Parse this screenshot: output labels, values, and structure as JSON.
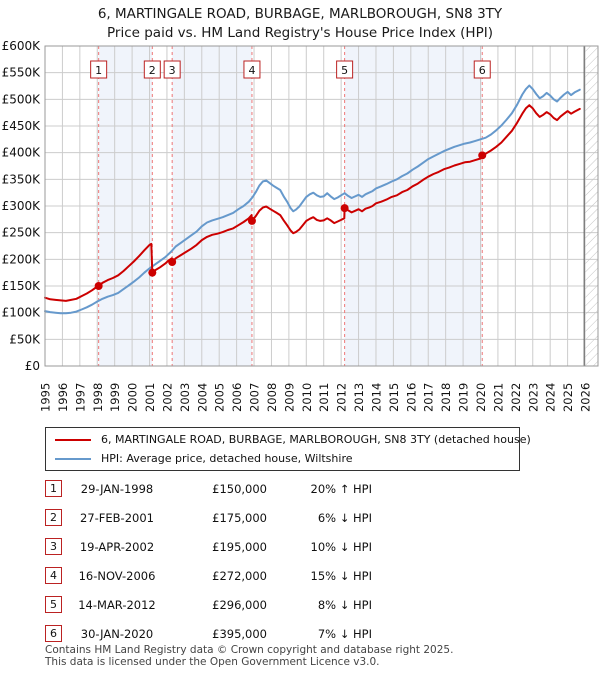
{
  "page": {
    "title": "6, MARTINGALE ROAD, BURBAGE, MARLBOROUGH, SN8 3TY",
    "subtitle": "Price paid vs. HM Land Registry's House Price Index (HPI)"
  },
  "legend": {
    "items": [
      {
        "name": "price-paid",
        "label": "6, MARTINGALE ROAD, BURBAGE, MARLBOROUGH, SN8 3TY (detached house)",
        "color": "#cc0000"
      },
      {
        "name": "hpi",
        "label": "HPI: Average price, detached house, Wiltshire",
        "color": "#6699cc"
      }
    ]
  },
  "footer": {
    "line1": "Contains HM Land Registry data © Crown copyright and database right 2025.",
    "line2": "This data is licensed under the Open Government Licence v3.0."
  },
  "colors": {
    "price_line": "#cc0000",
    "hpi_line": "#6699cc",
    "sale_dashed": "#ee7777",
    "shaded_band": "#f0f4fb",
    "grid": "#cccccc",
    "plot_border": "#999999",
    "hatch": "#c4c4c4",
    "data_end_line": "#555555",
    "marker_box_border": "#bb2222"
  },
  "chart_data": {
    "type": "line",
    "title": "6, MARTINGALE ROAD, BURBAGE, MARLBOROUGH, SN8 3TY — Price paid vs. HPI",
    "x_range": [
      1995,
      2026
    ],
    "y_range_k": [
      0,
      600
    ],
    "y_tick_step_k": 50,
    "y_tick_labels": [
      "£0",
      "£50K",
      "£100K",
      "£150K",
      "£200K",
      "£250K",
      "£300K",
      "£350K",
      "£400K",
      "£450K",
      "£500K",
      "£550K",
      "£600K"
    ],
    "x_tick_labels": [
      "1995",
      "1996",
      "1997",
      "1998",
      "1999",
      "2000",
      "2001",
      "2002",
      "2003",
      "2004",
      "2005",
      "2006",
      "2007",
      "2008",
      "2009",
      "2010",
      "2011",
      "2012",
      "2013",
      "2014",
      "2015",
      "2016",
      "2017",
      "2018",
      "2019",
      "2020",
      "2021",
      "2022",
      "2023",
      "2024",
      "2025",
      "2026"
    ],
    "unit": "GBP thousands",
    "grid": true,
    "legend_position": "below",
    "shaded_periods": [
      [
        1998.08,
        2001.16
      ],
      [
        2002.3,
        2006.88
      ],
      [
        2012.2,
        2020.1
      ]
    ],
    "data_end_x": 2025.95,
    "series": [
      {
        "name": "hpi",
        "label": "HPI: Average price, detached house, Wiltshire",
        "color": "#6699cc",
        "points": [
          [
            1995.0,
            103
          ],
          [
            1995.3,
            101
          ],
          [
            1995.6,
            100
          ],
          [
            1995.9,
            99
          ],
          [
            1996.2,
            99
          ],
          [
            1996.5,
            100
          ],
          [
            1996.8,
            102
          ],
          [
            1997.1,
            106
          ],
          [
            1997.4,
            110
          ],
          [
            1997.7,
            115
          ],
          [
            1998.0,
            121
          ],
          [
            1998.3,
            126
          ],
          [
            1998.6,
            130
          ],
          [
            1998.9,
            133
          ],
          [
            1999.2,
            137
          ],
          [
            1999.5,
            144
          ],
          [
            1999.8,
            151
          ],
          [
            2000.1,
            158
          ],
          [
            2000.4,
            166
          ],
          [
            2000.7,
            175
          ],
          [
            2001.0,
            183
          ],
          [
            2001.3,
            190
          ],
          [
            2001.6,
            197
          ],
          [
            2001.9,
            204
          ],
          [
            2002.2,
            213
          ],
          [
            2002.5,
            224
          ],
          [
            2002.8,
            231
          ],
          [
            2003.1,
            238
          ],
          [
            2003.4,
            245
          ],
          [
            2003.7,
            252
          ],
          [
            2004.0,
            262
          ],
          [
            2004.3,
            269
          ],
          [
            2004.6,
            273
          ],
          [
            2004.9,
            276
          ],
          [
            2005.2,
            279
          ],
          [
            2005.5,
            283
          ],
          [
            2005.8,
            287
          ],
          [
            2006.1,
            294
          ],
          [
            2006.4,
            300
          ],
          [
            2006.7,
            308
          ],
          [
            2006.9,
            316
          ],
          [
            2007.1,
            326
          ],
          [
            2007.3,
            338
          ],
          [
            2007.5,
            346
          ],
          [
            2007.7,
            348
          ],
          [
            2007.9,
            343
          ],
          [
            2008.1,
            338
          ],
          [
            2008.3,
            334
          ],
          [
            2008.5,
            330
          ],
          [
            2008.7,
            318
          ],
          [
            2008.9,
            308
          ],
          [
            2009.1,
            296
          ],
          [
            2009.25,
            290
          ],
          [
            2009.4,
            293
          ],
          [
            2009.6,
            299
          ],
          [
            2009.8,
            308
          ],
          [
            2010.0,
            317
          ],
          [
            2010.2,
            322
          ],
          [
            2010.4,
            325
          ],
          [
            2010.6,
            320
          ],
          [
            2010.8,
            317
          ],
          [
            2011.0,
            318
          ],
          [
            2011.2,
            324
          ],
          [
            2011.4,
            318
          ],
          [
            2011.6,
            313
          ],
          [
            2011.8,
            316
          ],
          [
            2012.0,
            320
          ],
          [
            2012.2,
            324
          ],
          [
            2012.4,
            319
          ],
          [
            2012.6,
            315
          ],
          [
            2012.8,
            318
          ],
          [
            2013.0,
            321
          ],
          [
            2013.2,
            317
          ],
          [
            2013.4,
            322
          ],
          [
            2013.6,
            325
          ],
          [
            2013.8,
            328
          ],
          [
            2014.0,
            333
          ],
          [
            2014.3,
            337
          ],
          [
            2014.6,
            341
          ],
          [
            2014.9,
            346
          ],
          [
            2015.2,
            350
          ],
          [
            2015.5,
            356
          ],
          [
            2015.8,
            361
          ],
          [
            2016.1,
            368
          ],
          [
            2016.4,
            374
          ],
          [
            2016.7,
            381
          ],
          [
            2017.0,
            388
          ],
          [
            2017.3,
            393
          ],
          [
            2017.6,
            398
          ],
          [
            2017.9,
            403
          ],
          [
            2018.2,
            407
          ],
          [
            2018.5,
            411
          ],
          [
            2018.8,
            414
          ],
          [
            2019.1,
            417
          ],
          [
            2019.4,
            419
          ],
          [
            2019.7,
            422
          ],
          [
            2020.0,
            425
          ],
          [
            2020.3,
            428
          ],
          [
            2020.6,
            434
          ],
          [
            2020.9,
            442
          ],
          [
            2021.2,
            451
          ],
          [
            2021.5,
            462
          ],
          [
            2021.8,
            474
          ],
          [
            2022.1,
            490
          ],
          [
            2022.4,
            509
          ],
          [
            2022.6,
            519
          ],
          [
            2022.8,
            526
          ],
          [
            2023.0,
            519
          ],
          [
            2023.2,
            510
          ],
          [
            2023.4,
            502
          ],
          [
            2023.6,
            506
          ],
          [
            2023.8,
            512
          ],
          [
            2024.0,
            507
          ],
          [
            2024.2,
            500
          ],
          [
            2024.4,
            496
          ],
          [
            2024.6,
            503
          ],
          [
            2024.8,
            509
          ],
          [
            2025.0,
            514
          ],
          [
            2025.2,
            508
          ],
          [
            2025.4,
            513
          ],
          [
            2025.7,
            518
          ]
        ]
      },
      {
        "name": "price-paid-indexed",
        "label": "6, MARTINGALE ROAD, BURBAGE, MARLBOROUGH, SN8 3TY (detached house)",
        "color": "#cc0000",
        "points": [
          [
            1995.0,
            128
          ],
          [
            1995.3,
            125
          ],
          [
            1995.6,
            124
          ],
          [
            1995.9,
            123
          ],
          [
            1996.2,
            122
          ],
          [
            1996.5,
            124
          ],
          [
            1996.8,
            126
          ],
          [
            1997.1,
            131
          ],
          [
            1997.4,
            136
          ],
          [
            1997.7,
            142
          ],
          [
            1998.0,
            149
          ],
          [
            1998.08,
            150
          ],
          [
            1998.3,
            156
          ],
          [
            1998.6,
            161
          ],
          [
            1998.9,
            165
          ],
          [
            1999.2,
            170
          ],
          [
            1999.5,
            178
          ],
          [
            1999.8,
            187
          ],
          [
            2000.1,
            196
          ],
          [
            2000.4,
            206
          ],
          [
            2000.7,
            217
          ],
          [
            2001.0,
            227
          ],
          [
            2001.1,
            229
          ],
          [
            2001.16,
            175
          ],
          [
            2001.3,
            179
          ],
          [
            2001.6,
            185
          ],
          [
            2001.9,
            192
          ],
          [
            2002.1,
            198
          ],
          [
            2002.28,
            202
          ],
          [
            2002.3,
            195
          ],
          [
            2002.5,
            202
          ],
          [
            2002.8,
            208
          ],
          [
            2003.1,
            214
          ],
          [
            2003.4,
            220
          ],
          [
            2003.7,
            227
          ],
          [
            2004.0,
            236
          ],
          [
            2004.3,
            242
          ],
          [
            2004.6,
            246
          ],
          [
            2004.9,
            248
          ],
          [
            2005.2,
            251
          ],
          [
            2005.5,
            255
          ],
          [
            2005.8,
            258
          ],
          [
            2006.1,
            264
          ],
          [
            2006.4,
            270
          ],
          [
            2006.7,
            277
          ],
          [
            2006.86,
            283
          ],
          [
            2006.88,
            272
          ],
          [
            2007.1,
            281
          ],
          [
            2007.3,
            291
          ],
          [
            2007.5,
            297
          ],
          [
            2007.7,
            299
          ],
          [
            2007.9,
            295
          ],
          [
            2008.1,
            291
          ],
          [
            2008.3,
            287
          ],
          [
            2008.5,
            283
          ],
          [
            2008.7,
            273
          ],
          [
            2008.9,
            264
          ],
          [
            2009.1,
            254
          ],
          [
            2009.25,
            249
          ],
          [
            2009.4,
            251
          ],
          [
            2009.6,
            256
          ],
          [
            2009.8,
            264
          ],
          [
            2010.0,
            272
          ],
          [
            2010.2,
            276
          ],
          [
            2010.4,
            279
          ],
          [
            2010.6,
            274
          ],
          [
            2010.8,
            272
          ],
          [
            2011.0,
            273
          ],
          [
            2011.2,
            277
          ],
          [
            2011.4,
            273
          ],
          [
            2011.6,
            268
          ],
          [
            2011.8,
            271
          ],
          [
            2012.0,
            274
          ],
          [
            2012.18,
            277
          ],
          [
            2012.2,
            296
          ],
          [
            2012.4,
            292
          ],
          [
            2012.6,
            288
          ],
          [
            2012.8,
            291
          ],
          [
            2013.0,
            294
          ],
          [
            2013.2,
            290
          ],
          [
            2013.4,
            295
          ],
          [
            2013.6,
            297
          ],
          [
            2013.8,
            300
          ],
          [
            2014.0,
            305
          ],
          [
            2014.3,
            308
          ],
          [
            2014.6,
            312
          ],
          [
            2014.9,
            317
          ],
          [
            2015.2,
            320
          ],
          [
            2015.5,
            326
          ],
          [
            2015.8,
            330
          ],
          [
            2016.1,
            337
          ],
          [
            2016.4,
            342
          ],
          [
            2016.7,
            349
          ],
          [
            2017.0,
            355
          ],
          [
            2017.3,
            360
          ],
          [
            2017.6,
            364
          ],
          [
            2017.9,
            369
          ],
          [
            2018.2,
            372
          ],
          [
            2018.5,
            376
          ],
          [
            2018.8,
            379
          ],
          [
            2019.1,
            382
          ],
          [
            2019.4,
            383
          ],
          [
            2019.7,
            386
          ],
          [
            2020.0,
            389
          ],
          [
            2020.06,
            390
          ],
          [
            2020.1,
            395
          ],
          [
            2020.3,
            398
          ],
          [
            2020.6,
            404
          ],
          [
            2020.9,
            411
          ],
          [
            2021.2,
            419
          ],
          [
            2021.5,
            430
          ],
          [
            2021.8,
            441
          ],
          [
            2022.1,
            456
          ],
          [
            2022.4,
            473
          ],
          [
            2022.6,
            483
          ],
          [
            2022.8,
            489
          ],
          [
            2023.0,
            483
          ],
          [
            2023.2,
            474
          ],
          [
            2023.4,
            467
          ],
          [
            2023.6,
            471
          ],
          [
            2023.8,
            476
          ],
          [
            2024.0,
            472
          ],
          [
            2024.2,
            465
          ],
          [
            2024.4,
            461
          ],
          [
            2024.6,
            468
          ],
          [
            2024.8,
            473
          ],
          [
            2025.0,
            478
          ],
          [
            2025.2,
            473
          ],
          [
            2025.4,
            477
          ],
          [
            2025.7,
            482
          ]
        ]
      }
    ],
    "sales": [
      {
        "n": "1",
        "x": 1998.08,
        "price_k": 150,
        "date": "29-JAN-1998",
        "price": "£150,000",
        "pct": "20%",
        "arrow": "↑",
        "suffix": "HPI"
      },
      {
        "n": "2",
        "x": 2001.16,
        "price_k": 175,
        "date": "27-FEB-2001",
        "price": "£175,000",
        "pct": "6%",
        "arrow": "↓",
        "suffix": "HPI"
      },
      {
        "n": "3",
        "x": 2002.3,
        "price_k": 195,
        "date": "19-APR-2002",
        "price": "£195,000",
        "pct": "10%",
        "arrow": "↓",
        "suffix": "HPI"
      },
      {
        "n": "4",
        "x": 2006.88,
        "price_k": 272,
        "date": "16-NOV-2006",
        "price": "£272,000",
        "pct": "15%",
        "arrow": "↓",
        "suffix": "HPI"
      },
      {
        "n": "5",
        "x": 2012.2,
        "price_k": 296,
        "date": "14-MAR-2012",
        "price": "£296,000",
        "pct": "8%",
        "arrow": "↓",
        "suffix": "HPI"
      },
      {
        "n": "6",
        "x": 2020.1,
        "price_k": 395,
        "date": "30-JAN-2020",
        "price": "£395,000",
        "pct": "7%",
        "arrow": "↓",
        "suffix": "HPI"
      }
    ]
  }
}
